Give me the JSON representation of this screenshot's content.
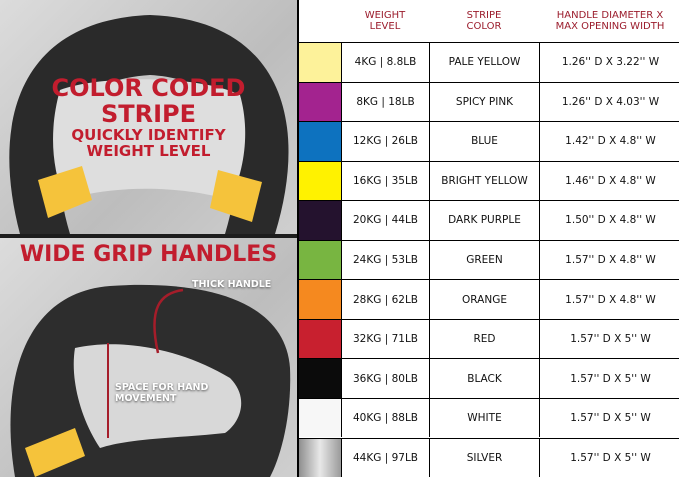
{
  "left": {
    "top_heading": [
      "COLOR CODED",
      "STRIPE"
    ],
    "top_sub": [
      "QUICKLY IDENTIFY",
      "WEIGHT LEVEL"
    ],
    "bottom_heading": "WIDE GRIP HANDLES",
    "callout_thick": "THICK HANDLE",
    "callout_space": [
      "SPACE FOR HAND",
      "MOVEMENT"
    ],
    "stripe_color": "#f5c33b"
  },
  "table": {
    "headers": [
      [
        "WEIGHT",
        "LEVEL"
      ],
      [
        "STRIPE",
        "COLOR"
      ],
      [
        "HANDLE DIAMETER X",
        "MAX OPENING WIDTH"
      ]
    ],
    "rows": [
      {
        "color": "#fdf29a",
        "weight": "4KG | 8.8LB",
        "stripe": "PALE YELLOW",
        "handle": "1.26'' D X 3.22'' W"
      },
      {
        "color": "#a3238f",
        "weight": "8KG | 18LB",
        "stripe": "SPICY PINK",
        "handle": "1.26'' D X 4.03'' W"
      },
      {
        "color": "#0d72bf",
        "weight": "12KG | 26LB",
        "stripe": "BLUE",
        "handle": "1.42'' D X 4.8'' W"
      },
      {
        "color": "#fff200",
        "weight": "16KG | 35LB",
        "stripe": "BRIGHT YELLOW",
        "handle": "1.46'' D X 4.8'' W"
      },
      {
        "color": "#24122e",
        "weight": "20KG | 44LB",
        "stripe": "DARK PURPLE",
        "handle": "1.50'' D X 4.8'' W"
      },
      {
        "color": "#78b541",
        "weight": "24KG | 53LB",
        "stripe": "GREEN",
        "handle": "1.57'' D X 4.8'' W"
      },
      {
        "color": "#f5891f",
        "weight": "28KG | 62LB",
        "stripe": "ORANGE",
        "handle": "1.57'' D X 4.8'' W"
      },
      {
        "color": "#c8202f",
        "weight": "32KG | 71LB",
        "stripe": "RED",
        "handle": "1.57'' D X 5'' W"
      },
      {
        "color": "#0b0b0b",
        "weight": "36KG | 80LB",
        "stripe": "BLACK",
        "handle": "1.57'' D X 5'' W"
      },
      {
        "color": "#f7f7f7",
        "weight": "40KG | 88LB",
        "stripe": "WHITE",
        "handle": "1.57'' D X 5'' W"
      },
      {
        "color": "#b9b9b9",
        "weight": "44KG | 97LB",
        "stripe": "SILVER",
        "handle": "1.57'' D X 5'' W"
      }
    ]
  }
}
